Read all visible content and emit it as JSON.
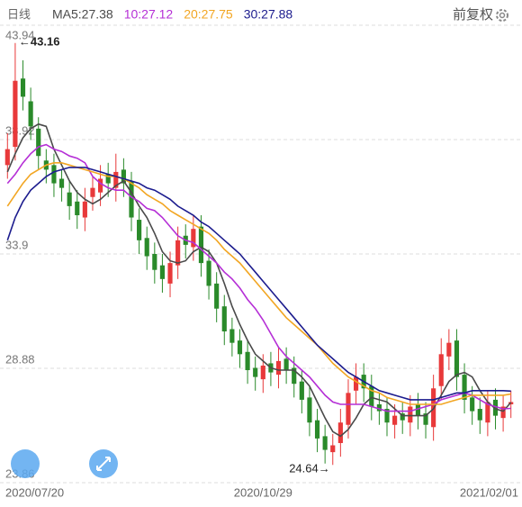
{
  "chart_data": {
    "type": "candlestick",
    "period_label": "日线",
    "adjust_label": "前复权",
    "categories": [
      "2020/07/20",
      null,
      null,
      null,
      null,
      null,
      null,
      null,
      null,
      null,
      null,
      null,
      null,
      null,
      null,
      null,
      null,
      null,
      null,
      null,
      null,
      null,
      null,
      null,
      null,
      null,
      null,
      null,
      null,
      null,
      null,
      null,
      null,
      "2020/10/29",
      null,
      null,
      null,
      null,
      null,
      null,
      null,
      null,
      null,
      null,
      null,
      null,
      null,
      null,
      null,
      null,
      null,
      null,
      null,
      null,
      null,
      null,
      null,
      null,
      null,
      null,
      null,
      null,
      null,
      null,
      null,
      "2021/02/01"
    ],
    "open": [
      37.8,
      38.6,
      41.6,
      40.6,
      39.4,
      38.0,
      37.8,
      37.2,
      36.6,
      36.2,
      35.5,
      36.4,
      36.6,
      37.4,
      36.8,
      37.6,
      37.1,
      35.4,
      34.6,
      33.9,
      33.4,
      32.6,
      33.4,
      34.7,
      34.2,
      35.1,
      33.6,
      32.6,
      31.6,
      30.6,
      30.1,
      29.6,
      28.9,
      28.4,
      29.1,
      28.6,
      29.3,
      28.9,
      28.3,
      27.6,
      26.6,
      25.9,
      25.2,
      25.6,
      26.4,
      27.9,
      28.6,
      28.1,
      27.3,
      27.1,
      26.4,
      26.9,
      26.5,
      27.3,
      26.9,
      26.3,
      28.1,
      29.4,
      30.1,
      28.6,
      27.6,
      27.1,
      26.5,
      27.5,
      26.7,
      27.3
    ],
    "high": [
      39.2,
      43.16,
      42.4,
      41.2,
      39.9,
      38.5,
      38.3,
      37.6,
      37.1,
      36.7,
      36.8,
      37.3,
      37.8,
      37.9,
      38.3,
      38.1,
      37.5,
      35.9,
      35.1,
      34.4,
      33.9,
      34.0,
      35.1,
      35.2,
      35.6,
      35.6,
      34.1,
      33.1,
      32.1,
      31.1,
      30.6,
      30.1,
      29.4,
      29.5,
      29.6,
      29.8,
      29.8,
      29.4,
      28.8,
      28.1,
      27.1,
      26.4,
      26.0,
      27.1,
      28.4,
      29.1,
      29.1,
      28.6,
      27.8,
      27.6,
      27.3,
      27.4,
      27.7,
      27.8,
      27.4,
      28.6,
      30.2,
      30.6,
      30.6,
      29.1,
      28.1,
      27.6,
      27.9,
      28.0,
      27.7,
      27.9
    ],
    "low": [
      37.2,
      38.0,
      40.2,
      38.9,
      37.6,
      37.0,
      36.4,
      36.2,
      35.4,
      35.0,
      34.9,
      35.8,
      36.0,
      36.4,
      36.2,
      36.4,
      34.9,
      33.9,
      33.2,
      32.6,
      32.2,
      32.0,
      32.8,
      33.7,
      33.6,
      32.9,
      31.9,
      30.9,
      29.9,
      29.4,
      28.9,
      28.2,
      27.9,
      27.8,
      28.1,
      28.0,
      28.2,
      27.6,
      26.9,
      25.9,
      25.2,
      24.7,
      24.64,
      25.0,
      25.8,
      27.3,
      27.4,
      26.6,
      26.4,
      25.9,
      25.8,
      26.0,
      25.9,
      26.2,
      25.8,
      25.7,
      27.5,
      28.8,
      27.9,
      26.9,
      26.4,
      26.0,
      25.9,
      26.2,
      26.1,
      26.7
    ],
    "close": [
      38.5,
      41.5,
      40.8,
      39.5,
      38.2,
      37.6,
      37.0,
      36.8,
      36.0,
      35.6,
      36.2,
      36.8,
      37.2,
      37.0,
      37.5,
      37.0,
      35.5,
      34.5,
      33.8,
      33.2,
      32.8,
      33.5,
      34.5,
      34.3,
      35.0,
      33.5,
      32.5,
      31.5,
      30.5,
      30.0,
      29.5,
      28.8,
      28.5,
      29.0,
      28.7,
      29.2,
      28.8,
      28.2,
      27.5,
      26.5,
      25.8,
      25.3,
      25.5,
      26.5,
      27.8,
      28.5,
      28.0,
      27.2,
      27.0,
      26.5,
      26.8,
      26.6,
      27.2,
      26.8,
      26.4,
      28.0,
      29.5,
      30.0,
      28.5,
      27.5,
      27.0,
      26.6,
      27.4,
      26.8,
      27.2,
      27.4
    ],
    "up_color": "#e8393a",
    "down_color": "#2a8a2a",
    "series": [
      {
        "name": "MA5:27.38",
        "color": "#4a4a4a",
        "values": [
          37.5,
          38.3,
          39.0,
          39.4,
          39.6,
          39.5,
          38.5,
          37.8,
          37.1,
          36.6,
          36.3,
          36.1,
          36.3,
          36.6,
          36.9,
          37.1,
          36.6,
          36.0,
          35.5,
          34.8,
          34.0,
          33.6,
          33.5,
          33.6,
          34.0,
          34.2,
          34.0,
          33.5,
          32.6,
          31.6,
          30.8,
          30.1,
          29.5,
          29.2,
          28.9,
          28.8,
          28.8,
          28.8,
          28.5,
          28.1,
          27.4,
          26.7,
          26.1,
          25.9,
          26.2,
          26.7,
          27.3,
          27.6,
          27.5,
          27.4,
          27.1,
          26.8,
          26.8,
          26.8,
          26.8,
          27.1,
          27.7,
          28.3,
          28.6,
          28.7,
          28.5,
          27.9,
          27.4,
          27.1,
          27.0,
          27.38
        ]
      },
      {
        "name": "10:27.12",
        "color": "#b52fd6",
        "values": [
          37.0,
          37.4,
          37.9,
          38.3,
          38.6,
          38.7,
          38.5,
          38.4,
          38.2,
          38.1,
          37.9,
          37.3,
          37.0,
          36.8,
          36.7,
          36.7,
          36.4,
          36.2,
          35.9,
          35.8,
          35.5,
          35.1,
          34.7,
          34.5,
          34.4,
          34.1,
          33.8,
          33.5,
          33.1,
          32.8,
          32.4,
          31.9,
          31.5,
          31.0,
          30.4,
          29.8,
          29.4,
          29.1,
          28.8,
          28.5,
          28.1,
          27.7,
          27.4,
          27.3,
          27.3,
          27.3,
          27.3,
          27.2,
          27.1,
          27.0,
          27.0,
          27.0,
          27.0,
          27.1,
          27.2,
          27.3,
          27.5,
          27.6,
          27.7,
          27.8,
          27.7,
          27.5,
          27.3,
          27.2,
          27.1,
          27.12
        ]
      },
      {
        "name": "20:27.75",
        "color": "#f2a623",
        "values": [
          36.0,
          36.5,
          37.0,
          37.4,
          37.6,
          37.8,
          37.9,
          37.9,
          37.8,
          37.7,
          37.6,
          37.5,
          37.4,
          37.3,
          37.3,
          37.2,
          37.0,
          36.8,
          36.5,
          36.3,
          36.1,
          35.8,
          35.6,
          35.4,
          35.2,
          35.0,
          34.8,
          34.5,
          34.1,
          33.8,
          33.5,
          33.1,
          32.7,
          32.3,
          31.9,
          31.5,
          31.1,
          30.8,
          30.5,
          30.2,
          29.9,
          29.5,
          29.1,
          28.8,
          28.5,
          28.3,
          28.1,
          27.9,
          27.8,
          27.6,
          27.5,
          27.4,
          27.3,
          27.3,
          27.3,
          27.3,
          27.3,
          27.4,
          27.5,
          27.6,
          27.7,
          27.7,
          27.7,
          27.7,
          27.7,
          27.75
        ]
      },
      {
        "name": "30:27.88",
        "color": "#1c1c8e",
        "values": [
          34.5,
          35.5,
          36.2,
          36.7,
          37.0,
          37.3,
          37.5,
          37.6,
          37.7,
          37.7,
          37.7,
          37.6,
          37.5,
          37.4,
          37.3,
          37.2,
          37.1,
          37.0,
          36.8,
          36.7,
          36.5,
          36.3,
          36.0,
          35.8,
          35.6,
          35.3,
          35.1,
          34.8,
          34.5,
          34.2,
          33.9,
          33.5,
          33.1,
          32.7,
          32.3,
          31.9,
          31.5,
          31.1,
          30.7,
          30.3,
          29.9,
          29.6,
          29.3,
          29.0,
          28.7,
          28.5,
          28.3,
          28.1,
          27.9,
          27.8,
          27.7,
          27.6,
          27.5,
          27.5,
          27.5,
          27.5,
          27.6,
          27.7,
          27.8,
          27.8,
          27.9,
          27.9,
          27.9,
          27.9,
          27.9,
          27.88
        ]
      }
    ],
    "annotations": [
      {
        "text": "←43.16"
      },
      {
        "text": "24.64→"
      }
    ],
    "ylim": [
      23.86,
      43.94
    ],
    "yticks": [
      23.86,
      28.88,
      33.9,
      {
        "value": 38.92,
        "label": "38.92"
      },
      43.94
    ],
    "grid": true
  }
}
